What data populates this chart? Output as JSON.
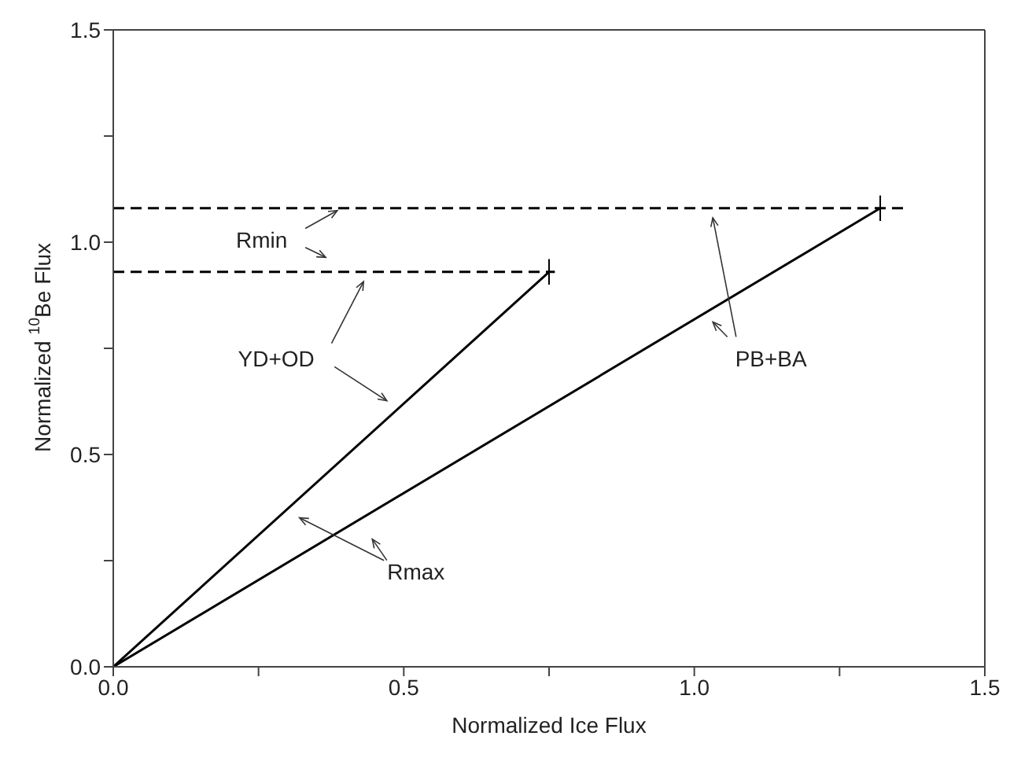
{
  "chart_data": {
    "type": "line",
    "xlabel": "Normalized Ice Flux",
    "ylabel": "Normalized $^{10}$Be Flux",
    "xlim": [
      0,
      1.5
    ],
    "ylim": [
      0,
      1.5
    ],
    "xticks": [
      {
        "value": 0,
        "label": "0.0"
      },
      {
        "value": 0.25,
        "label": null
      },
      {
        "value": 0.5,
        "label": "0.5"
      },
      {
        "value": 0.75,
        "label": null
      },
      {
        "value": 1,
        "label": "1.0"
      },
      {
        "value": 1.25,
        "label": null
      },
      {
        "value": 1.5,
        "label": "1.5"
      }
    ],
    "yticks": [
      {
        "value": 0,
        "label": "0.0"
      },
      {
        "value": 0.25,
        "label": null
      },
      {
        "value": 0.5,
        "label": "0.5"
      },
      {
        "value": 0.75,
        "label": null
      },
      {
        "value": 1,
        "label": "1.0"
      },
      {
        "value": 1.25,
        "label": null
      },
      {
        "value": 1.5,
        "label": "1.5"
      }
    ],
    "marker": "none",
    "series": [
      {
        "color": "#000000",
        "line_style": "solid",
        "x": [
          0,
          0.75
        ],
        "values": [
          0,
          0.93
        ],
        "errors": [
          null,
          0.03
        ]
      },
      {
        "color": "#000000",
        "line_style": "solid",
        "x": [
          0,
          1.32
        ],
        "values": [
          0,
          1.08
        ],
        "errors": [
          null,
          0.03
        ]
      },
      {
        "color": "#000000",
        "line_style": "dashed",
        "x": [
          0,
          1.36
        ],
        "values": [
          1.08,
          1.08
        ]
      },
      {
        "color": "#000000",
        "line_style": "dashed",
        "x": [
          0,
          0.76
        ],
        "values": [
          0.93,
          0.93
        ]
      }
    ],
    "annotations": [
      "Rmin",
      "YD+OD",
      "PB+BA",
      "Rmax"
    ]
  }
}
